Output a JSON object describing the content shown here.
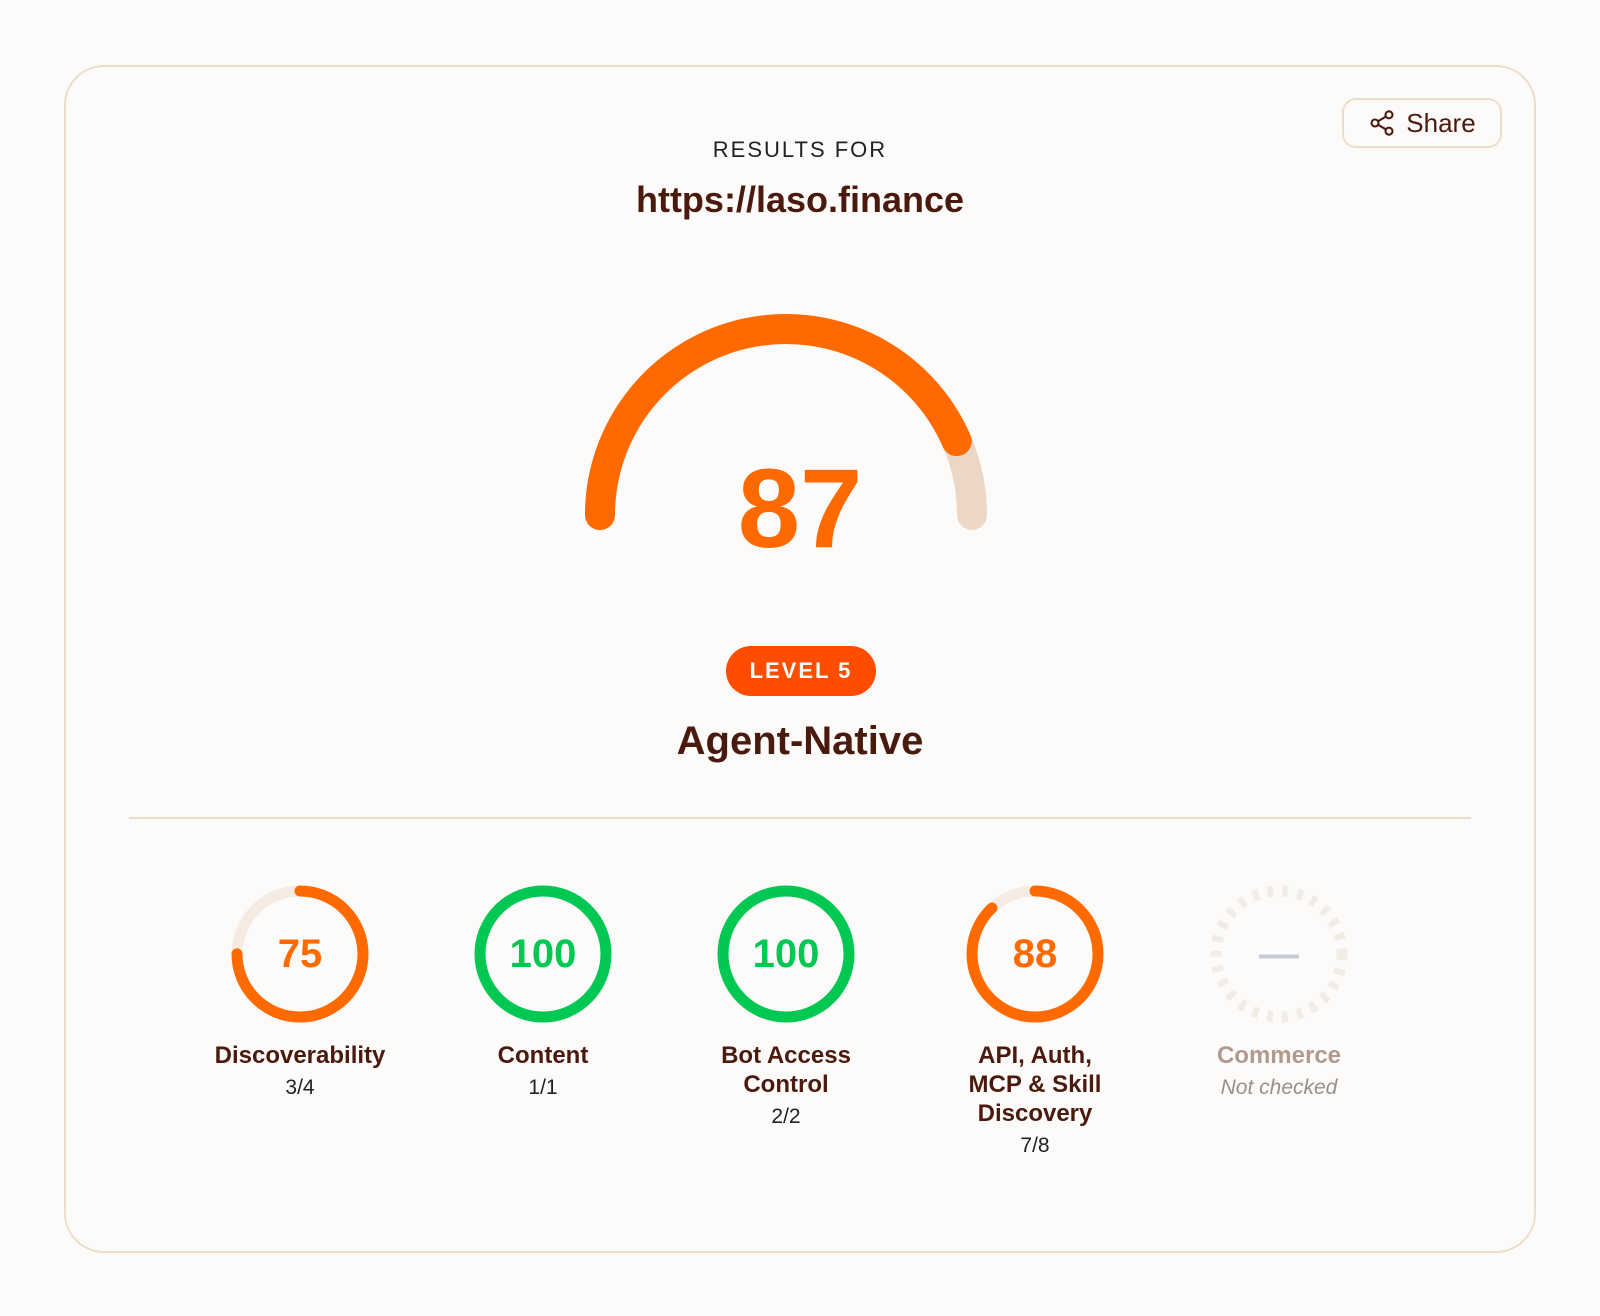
{
  "header": {
    "results_for": "RESULTS FOR",
    "url": "https://laso.finance",
    "share_label": "Share",
    "share_icon": "share-icon"
  },
  "overall": {
    "score": "87",
    "score_fraction": 0.87,
    "level": "LEVEL 5",
    "level_name": "Agent-Native"
  },
  "colors": {
    "orange": "#ff6a00",
    "green": "#00c853",
    "track": "#f6ebe2",
    "gauge_track": "#ecd7c6",
    "badge": "#ff4d00",
    "text_dark": "#4a1a0e"
  },
  "categories": [
    {
      "label": "Discoverability",
      "score": "75",
      "fraction": 0.75,
      "ratio": "3/4",
      "color": "orange"
    },
    {
      "label": "Content",
      "score": "100",
      "fraction": 1.0,
      "ratio": "1/1",
      "color": "green"
    },
    {
      "label": "Bot Access Control",
      "score": "100",
      "fraction": 1.0,
      "ratio": "2/2",
      "color": "green"
    },
    {
      "label": "API, Auth, MCP & Skill Discovery",
      "score": "88",
      "fraction": 0.88,
      "ratio": "7/8",
      "color": "orange"
    },
    {
      "label": "Commerce",
      "score": "—",
      "fraction": 0,
      "ratio": "Not checked",
      "color": "none"
    }
  ]
}
